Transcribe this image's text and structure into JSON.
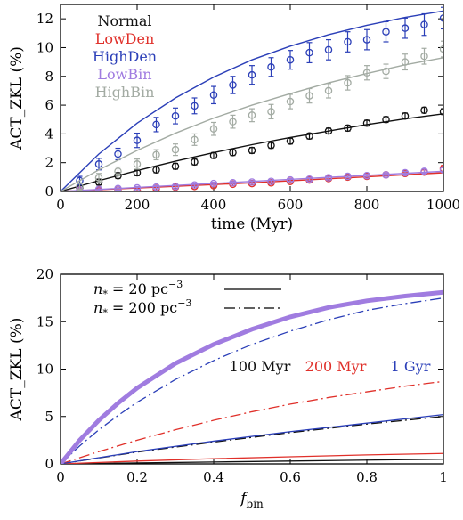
{
  "chart_data": [
    {
      "type": "line",
      "xlabel": "time (Myr)",
      "ylabel": "ACT_ZKL (%)",
      "xlim": [
        0,
        1000
      ],
      "ylim": [
        0,
        13
      ],
      "xticks": [
        0,
        200,
        400,
        600,
        800,
        1000
      ],
      "yticks": [
        0,
        2,
        4,
        6,
        8,
        10,
        12
      ],
      "legend_position": "top-left",
      "grid": false,
      "series": [
        {
          "name": "Normal",
          "color": "#111111",
          "model_x": [
            0,
            100,
            200,
            300,
            400,
            500,
            600,
            700,
            800,
            900,
            1000
          ],
          "model_y": [
            0,
            0.75,
            1.45,
            2.1,
            2.7,
            3.25,
            3.75,
            4.2,
            4.65,
            5.05,
            5.4
          ],
          "points": [
            {
              "x": 50,
              "y": 0.25,
              "err": 0.2
            },
            {
              "x": 100,
              "y": 0.65,
              "err": 0.2
            },
            {
              "x": 150,
              "y": 1.1,
              "err": 0.2
            },
            {
              "x": 200,
              "y": 1.3,
              "err": 0.2
            },
            {
              "x": 250,
              "y": 1.5,
              "err": 0.2
            },
            {
              "x": 300,
              "y": 1.75,
              "err": 0.2
            },
            {
              "x": 350,
              "y": 2.05,
              "err": 0.2
            },
            {
              "x": 400,
              "y": 2.5,
              "err": 0.2
            },
            {
              "x": 450,
              "y": 2.7,
              "err": 0.2
            },
            {
              "x": 500,
              "y": 2.85,
              "err": 0.2
            },
            {
              "x": 550,
              "y": 3.2,
              "err": 0.2
            },
            {
              "x": 600,
              "y": 3.5,
              "err": 0.2
            },
            {
              "x": 650,
              "y": 3.85,
              "err": 0.2
            },
            {
              "x": 700,
              "y": 4.2,
              "err": 0.2
            },
            {
              "x": 750,
              "y": 4.4,
              "err": 0.2
            },
            {
              "x": 800,
              "y": 4.75,
              "err": 0.2
            },
            {
              "x": 850,
              "y": 5.0,
              "err": 0.2
            },
            {
              "x": 900,
              "y": 5.25,
              "err": 0.2
            },
            {
              "x": 950,
              "y": 5.65,
              "err": 0.2
            },
            {
              "x": 1000,
              "y": 5.55,
              "err": 0.2
            }
          ]
        },
        {
          "name": "LowDen",
          "color": "#e0302a",
          "model_x": [
            0,
            250,
            500,
            750,
            1000
          ],
          "model_y": [
            0,
            0.3,
            0.6,
            0.95,
            1.3
          ],
          "points": [
            {
              "x": 50,
              "y": 0.05,
              "err": 0.1
            },
            {
              "x": 100,
              "y": 0.1,
              "err": 0.1
            },
            {
              "x": 150,
              "y": 0.1,
              "err": 0.1
            },
            {
              "x": 200,
              "y": 0.1,
              "err": 0.1
            },
            {
              "x": 250,
              "y": 0.2,
              "err": 0.1
            },
            {
              "x": 300,
              "y": 0.3,
              "err": 0.1
            },
            {
              "x": 350,
              "y": 0.35,
              "err": 0.1
            },
            {
              "x": 400,
              "y": 0.4,
              "err": 0.1
            },
            {
              "x": 450,
              "y": 0.5,
              "err": 0.1
            },
            {
              "x": 500,
              "y": 0.55,
              "err": 0.1
            },
            {
              "x": 550,
              "y": 0.6,
              "err": 0.1
            },
            {
              "x": 600,
              "y": 0.7,
              "err": 0.1
            },
            {
              "x": 650,
              "y": 0.8,
              "err": 0.1
            },
            {
              "x": 700,
              "y": 0.9,
              "err": 0.1
            },
            {
              "x": 750,
              "y": 1.0,
              "err": 0.1
            },
            {
              "x": 800,
              "y": 1.05,
              "err": 0.1
            },
            {
              "x": 850,
              "y": 1.15,
              "err": 0.1
            },
            {
              "x": 900,
              "y": 1.25,
              "err": 0.1
            },
            {
              "x": 950,
              "y": 1.35,
              "err": 0.15
            },
            {
              "x": 1000,
              "y": 1.6,
              "err": 0.2
            }
          ]
        },
        {
          "name": "HighDen",
          "color": "#2b3fb8",
          "model_x": [
            0,
            100,
            200,
            300,
            400,
            500,
            600,
            700,
            800,
            900,
            1000
          ],
          "model_y": [
            0,
            2.6,
            4.75,
            6.5,
            7.95,
            9.15,
            10.1,
            10.9,
            11.55,
            12.1,
            12.55
          ],
          "points": [
            {
              "x": 50,
              "y": 0.75,
              "err": 0.3
            },
            {
              "x": 100,
              "y": 1.9,
              "err": 0.4
            },
            {
              "x": 150,
              "y": 2.6,
              "err": 0.4
            },
            {
              "x": 200,
              "y": 3.55,
              "err": 0.5
            },
            {
              "x": 250,
              "y": 4.65,
              "err": 0.5
            },
            {
              "x": 300,
              "y": 5.25,
              "err": 0.55
            },
            {
              "x": 350,
              "y": 5.95,
              "err": 0.55
            },
            {
              "x": 400,
              "y": 6.7,
              "err": 0.6
            },
            {
              "x": 450,
              "y": 7.4,
              "err": 0.6
            },
            {
              "x": 500,
              "y": 8.1,
              "err": 0.65
            },
            {
              "x": 550,
              "y": 8.65,
              "err": 0.65
            },
            {
              "x": 600,
              "y": 9.15,
              "err": 0.65
            },
            {
              "x": 650,
              "y": 9.65,
              "err": 0.7
            },
            {
              "x": 700,
              "y": 9.85,
              "err": 0.7
            },
            {
              "x": 750,
              "y": 10.4,
              "err": 0.7
            },
            {
              "x": 800,
              "y": 10.55,
              "err": 0.7
            },
            {
              "x": 850,
              "y": 11.1,
              "err": 0.7
            },
            {
              "x": 900,
              "y": 11.35,
              "err": 0.7
            },
            {
              "x": 950,
              "y": 11.6,
              "err": 0.75
            },
            {
              "x": 1000,
              "y": 12.05,
              "err": 0.75
            }
          ]
        },
        {
          "name": "LowBin",
          "color": "#a07ce0",
          "model_x": [
            0,
            250,
            500,
            750,
            1000
          ],
          "model_y": [
            0,
            0.35,
            0.7,
            1.05,
            1.4
          ],
          "points": [
            {
              "x": 50,
              "y": 0.1,
              "err": 0.1
            },
            {
              "x": 100,
              "y": 0.15,
              "err": 0.1
            },
            {
              "x": 150,
              "y": 0.2,
              "err": 0.1
            },
            {
              "x": 200,
              "y": 0.25,
              "err": 0.1
            },
            {
              "x": 250,
              "y": 0.3,
              "err": 0.1
            },
            {
              "x": 300,
              "y": 0.35,
              "err": 0.1
            },
            {
              "x": 350,
              "y": 0.45,
              "err": 0.1
            },
            {
              "x": 400,
              "y": 0.55,
              "err": 0.1
            },
            {
              "x": 450,
              "y": 0.6,
              "err": 0.1
            },
            {
              "x": 500,
              "y": 0.65,
              "err": 0.1
            },
            {
              "x": 550,
              "y": 0.7,
              "err": 0.1
            },
            {
              "x": 600,
              "y": 0.8,
              "err": 0.1
            },
            {
              "x": 650,
              "y": 0.85,
              "err": 0.1
            },
            {
              "x": 700,
              "y": 0.95,
              "err": 0.1
            },
            {
              "x": 750,
              "y": 1.05,
              "err": 0.1
            },
            {
              "x": 800,
              "y": 1.1,
              "err": 0.1
            },
            {
              "x": 850,
              "y": 1.15,
              "err": 0.1
            },
            {
              "x": 900,
              "y": 1.3,
              "err": 0.1
            },
            {
              "x": 950,
              "y": 1.4,
              "err": 0.15
            },
            {
              "x": 1000,
              "y": 1.5,
              "err": 0.15
            }
          ]
        },
        {
          "name": "HighBin",
          "color": "#a3aba3",
          "model_x": [
            0,
            100,
            200,
            300,
            400,
            500,
            600,
            700,
            800,
            900,
            1000
          ],
          "model_y": [
            0,
            1.5,
            2.85,
            4.05,
            5.1,
            6.0,
            6.8,
            7.55,
            8.2,
            8.8,
            9.3
          ],
          "points": [
            {
              "x": 50,
              "y": 0.35,
              "err": 0.25
            },
            {
              "x": 100,
              "y": 0.95,
              "err": 0.3
            },
            {
              "x": 150,
              "y": 1.4,
              "err": 0.3
            },
            {
              "x": 200,
              "y": 1.9,
              "err": 0.35
            },
            {
              "x": 250,
              "y": 2.55,
              "err": 0.35
            },
            {
              "x": 300,
              "y": 2.9,
              "err": 0.4
            },
            {
              "x": 350,
              "y": 3.6,
              "err": 0.4
            },
            {
              "x": 400,
              "y": 4.35,
              "err": 0.45
            },
            {
              "x": 450,
              "y": 4.85,
              "err": 0.45
            },
            {
              "x": 500,
              "y": 5.3,
              "err": 0.45
            },
            {
              "x": 550,
              "y": 5.55,
              "err": 0.5
            },
            {
              "x": 600,
              "y": 6.25,
              "err": 0.5
            },
            {
              "x": 650,
              "y": 6.65,
              "err": 0.5
            },
            {
              "x": 700,
              "y": 7.0,
              "err": 0.5
            },
            {
              "x": 750,
              "y": 7.55,
              "err": 0.5
            },
            {
              "x": 800,
              "y": 8.25,
              "err": 0.5
            },
            {
              "x": 850,
              "y": 8.35,
              "err": 0.5
            },
            {
              "x": 900,
              "y": 9.0,
              "err": 0.55
            },
            {
              "x": 950,
              "y": 9.4,
              "err": 0.55
            },
            {
              "x": 1000,
              "y": 9.9,
              "err": 0.55
            }
          ]
        }
      ]
    },
    {
      "type": "line",
      "xlabel_main": "f",
      "xlabel_sub": "bin",
      "ylabel": "ACT_ZKL (%)",
      "xlim": [
        0,
        1
      ],
      "ylim": [
        0,
        20
      ],
      "xticks": [
        0,
        0.2,
        0.4,
        0.6,
        0.8,
        1
      ],
      "yticks": [
        0,
        5,
        10,
        15,
        20
      ],
      "grid": false,
      "style_legend": [
        {
          "main": "n",
          "sub": "*",
          "rest": " = 20 pc",
          "sup": "−3",
          "dash": "solid"
        },
        {
          "main": "n",
          "sub": "*",
          "rest": " = 200 pc",
          "sup": "−3",
          "dash": "dashdot"
        }
      ],
      "time_legend": [
        {
          "label": "100 Myr",
          "color": "#111111"
        },
        {
          "label": "200 Myr",
          "color": "#e0302a"
        },
        {
          "label": "1 Gyr",
          "color": "#2b3fb8"
        }
      ],
      "series": [
        {
          "time": "100 Myr",
          "color": "#111111",
          "dash": "solid",
          "x": [
            0,
            0.2,
            0.4,
            0.6,
            0.8,
            1
          ],
          "y": [
            0,
            0.1,
            0.2,
            0.3,
            0.4,
            0.5
          ]
        },
        {
          "time": "100 Myr",
          "color": "#111111",
          "dash": "dashdot",
          "x": [
            0,
            0.2,
            0.4,
            0.6,
            0.8,
            1
          ],
          "y": [
            0,
            1.25,
            2.3,
            3.3,
            4.2,
            5.0
          ]
        },
        {
          "time": "200 Myr",
          "color": "#e0302a",
          "dash": "solid",
          "x": [
            0,
            0.2,
            0.4,
            0.6,
            0.8,
            1
          ],
          "y": [
            0,
            0.3,
            0.55,
            0.75,
            0.95,
            1.1
          ]
        },
        {
          "time": "200 Myr",
          "color": "#e0302a",
          "dash": "dashdot",
          "x": [
            0,
            0.1,
            0.2,
            0.3,
            0.4,
            0.5,
            0.6,
            0.7,
            0.8,
            0.9,
            1
          ],
          "y": [
            0,
            1.3,
            2.5,
            3.6,
            4.6,
            5.5,
            6.3,
            7.0,
            7.6,
            8.2,
            8.7
          ]
        },
        {
          "time": "1 Gyr",
          "color": "#2b3fb8",
          "dash": "solid",
          "x": [
            0,
            0.2,
            0.4,
            0.6,
            0.8,
            1
          ],
          "y": [
            0,
            1.3,
            2.4,
            3.4,
            4.3,
            5.2
          ]
        },
        {
          "time": "1 Gyr",
          "color": "#2b3fb8",
          "dash": "dashdot",
          "x": [
            0,
            0.05,
            0.1,
            0.15,
            0.2,
            0.3,
            0.4,
            0.5,
            0.6,
            0.7,
            0.8,
            0.9,
            1
          ],
          "y": [
            0,
            1.9,
            3.6,
            5.1,
            6.5,
            8.9,
            10.9,
            12.6,
            14.0,
            15.2,
            16.2,
            16.9,
            17.5
          ]
        },
        {
          "time": "1 Gyr",
          "color": "#a07ce0",
          "dash": "thick",
          "x": [
            0,
            0.05,
            0.1,
            0.15,
            0.2,
            0.3,
            0.4,
            0.5,
            0.6,
            0.7,
            0.8,
            0.9,
            1
          ],
          "y": [
            0,
            2.5,
            4.6,
            6.4,
            8.0,
            10.6,
            12.6,
            14.2,
            15.5,
            16.5,
            17.2,
            17.7,
            18.1
          ]
        }
      ]
    }
  ]
}
